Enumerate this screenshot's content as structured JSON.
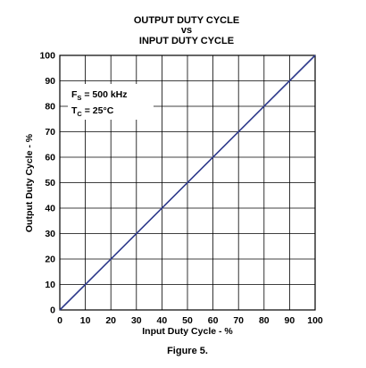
{
  "chart_data": {
    "type": "line",
    "title_lines": [
      "OUTPUT DUTY CYCLE",
      "vs",
      "INPUT DUTY CYCLE"
    ],
    "xlabel": "Input Duty Cycle - %",
    "ylabel": "Output Duty Cycle - %",
    "xlim": [
      0,
      100
    ],
    "ylim": [
      0,
      100
    ],
    "x_ticks": [
      0,
      10,
      20,
      30,
      40,
      50,
      60,
      70,
      80,
      90,
      100
    ],
    "y_ticks": [
      0,
      10,
      20,
      30,
      40,
      50,
      60,
      70,
      80,
      90,
      100
    ],
    "grid": true,
    "series": [
      {
        "x": [
          0,
          100
        ],
        "y": [
          0,
          100
        ],
        "color": "#2e3a8c"
      }
    ],
    "annotations": [
      {
        "main": "F",
        "sub": "S",
        "rest": " = 500 kHz"
      },
      {
        "main": "T",
        "sub": "C",
        "rest": " = 25°C"
      }
    ],
    "caption": "Figure 5."
  }
}
